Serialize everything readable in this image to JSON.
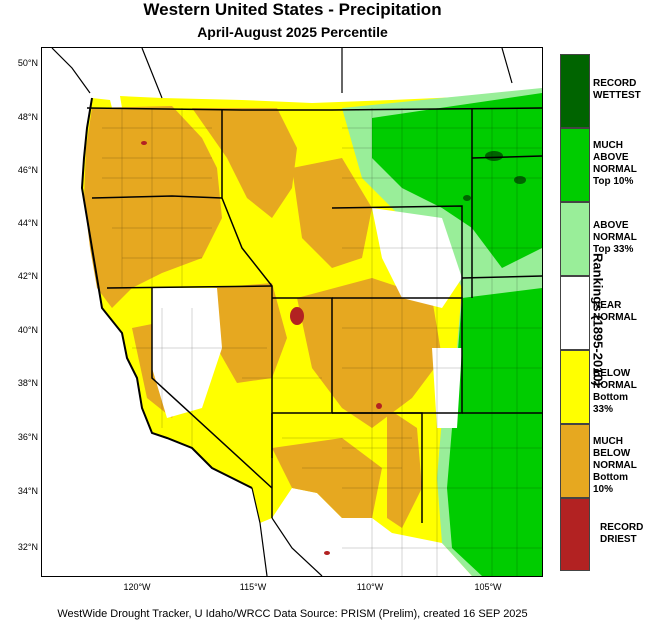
{
  "title": "Western United States - Precipitation",
  "subtitle": "April-August 2025 Percentile",
  "footer": "WestWide Drought Tracker, U Idaho/WRCC Data Source: PRISM (Prelim), created 16 SEP 2025",
  "legend_title": "Rankings (1895-2010)",
  "legend": [
    {
      "label": "RECORD\nWETTEST",
      "color": "#006400"
    },
    {
      "label": "MUCH\nABOVE\nNORMAL\nTop 10%",
      "color": "#00cc00"
    },
    {
      "label": "ABOVE\nNORMAL\nTop 33%",
      "color": "#99ee99"
    },
    {
      "label": "NEAR\nNORMAL",
      "color": "#ffffff"
    },
    {
      "label": "BELOW\nNORMAL\nBottom 33%",
      "color": "#ffff00"
    },
    {
      "label": "MUCH\nBELOW\nNORMAL\nBottom 10%",
      "color": "#e6a820"
    },
    {
      "label": "RECORD\nDRIEST",
      "color": "#b22222"
    }
  ],
  "lat_labels": [
    "50°N",
    "48°N",
    "46°N",
    "44°N",
    "42°N",
    "40°N",
    "38°N",
    "36°N",
    "34°N",
    "32°N"
  ],
  "lon_labels": [
    "120°W",
    "115°W",
    "110°W",
    "105°W"
  ]
}
